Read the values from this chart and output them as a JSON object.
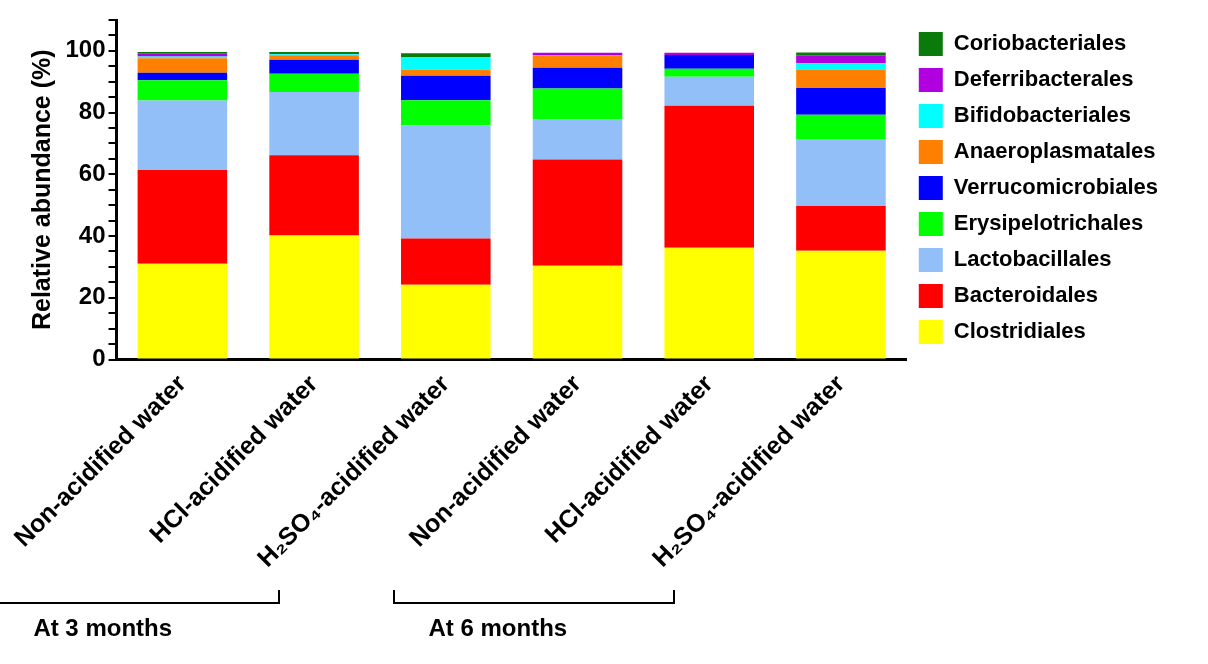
{
  "chart_data": {
    "type": "bar",
    "stacked": true,
    "ylabel": "Relative abundance (%)",
    "categories": [
      "Non-acidified water",
      "HCl-acidified water",
      "H₂SO₄-acidified water",
      "Non-acidified water",
      "HCl-acidified water",
      "H₂SO₄-acidified water"
    ],
    "series": [
      {
        "name": "Clostridiales",
        "color": "#ffff00",
        "values": [
          31,
          40.2,
          24.2,
          30.4,
          36.2,
          35.2
        ]
      },
      {
        "name": "Bacteroidales",
        "color": "#ff0000",
        "values": [
          30.4,
          26,
          15,
          34.4,
          46,
          14.5
        ]
      },
      {
        "name": "Lactobacillales",
        "color": "#92bff8",
        "values": [
          22.5,
          20.5,
          36.7,
          13.1,
          9.4,
          21.5
        ]
      },
      {
        "name": "Erysipelotrichales",
        "color": "#00ff00",
        "values": [
          6.6,
          5.9,
          8.1,
          9.9,
          2.6,
          8.1
        ]
      },
      {
        "name": "Verrucomicrobiales",
        "color": "#0000ff",
        "values": [
          2.4,
          4.5,
          7.9,
          6.7,
          4.5,
          8.7
        ]
      },
      {
        "name": "Anaeroplasmatales",
        "color": "#ff8000",
        "values": [
          4.7,
          1.5,
          2.1,
          4.1,
          0,
          6
        ]
      },
      {
        "name": "Bifidobacteriales",
        "color": "#00ffff",
        "values": [
          0.6,
          0.3,
          4,
          null,
          0,
          2
        ]
      },
      {
        "name": "Deferribacterales",
        "color": "#b000e0",
        "values": [
          0.9,
          0.4,
          null,
          0.8,
          0.7,
          2.6
        ]
      },
      {
        "name": "Coriobacteriales",
        "color": "#0a7a0a",
        "values": [
          0.5,
          0.3,
          1.2,
          null,
          0,
          0.9
        ]
      }
    ],
    "ylim": [
      0,
      110
    ],
    "yticks": [
      0,
      {
        "value": 5,
        "label": null
      },
      {
        "value": 10,
        "label": null
      },
      {
        "value": 15,
        "label": null
      },
      20,
      {
        "value": 25,
        "label": null
      },
      {
        "value": 30,
        "label": null
      },
      {
        "value": 35,
        "label": null
      },
      40,
      {
        "value": 45,
        "label": null
      },
      {
        "value": 50,
        "label": null
      },
      {
        "value": 55,
        "label": null
      },
      60,
      {
        "value": 65,
        "label": null
      },
      {
        "value": 70,
        "label": null
      },
      {
        "value": 75,
        "label": null
      },
      80,
      {
        "value": 85,
        "label": null
      },
      {
        "value": 90,
        "label": null
      },
      {
        "value": 95,
        "label": null
      },
      100,
      {
        "value": 105,
        "label": null
      },
      {
        "value": 110,
        "label": null
      }
    ],
    "legend": "top right",
    "grid": false,
    "annotations": [
      "At 3 months",
      "At 6 months"
    ]
  }
}
